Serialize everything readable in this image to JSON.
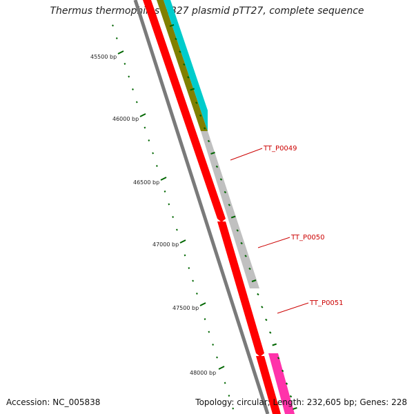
{
  "title": "Thermus thermophilus HB27 plasmid pTT27, complete sequence",
  "footer": {
    "accession": "Accession: NC_005838",
    "topology": "Topology: circular; Length: 232,605 bp; Genes: 228"
  },
  "map": {
    "tick_labels": [
      "45500 bp",
      "46000 bp",
      "46500 bp",
      "47000 bp",
      "47500 bp",
      "48000 bp"
    ],
    "gene_labels": [
      "TT_P0049",
      "TT_P0050",
      "TT_P0051"
    ],
    "colors": {
      "forward_red": "#ff0000",
      "backbone_gray": "#808080",
      "cyan_feature": "#00cccc",
      "olive_feature": "#808000",
      "gene_gray": "#c0c0c0",
      "magenta_feature": "#ff33aa",
      "tick_green": "#006600",
      "label_red": "#cc0000"
    }
  }
}
